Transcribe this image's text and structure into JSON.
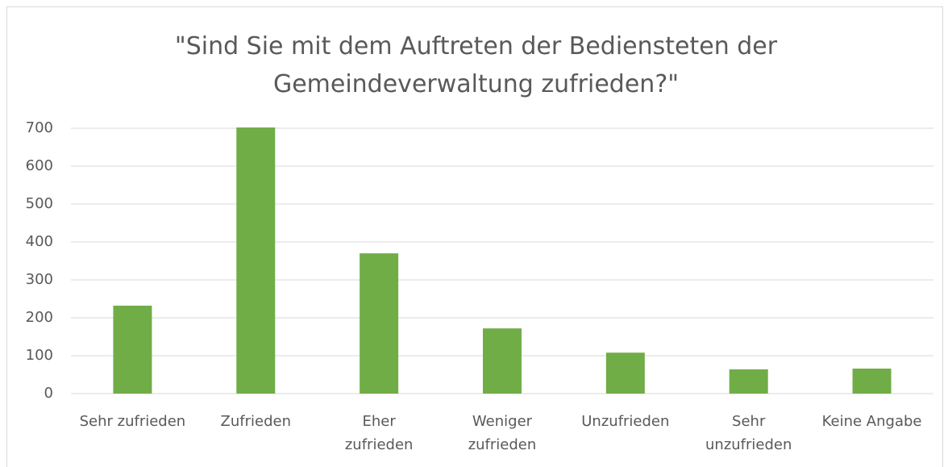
{
  "chart_data": {
    "type": "bar",
    "title": "\"Sind Sie mit dem Auftreten der Bediensteten der\nGemeindeverwaltung zufrieden?\"",
    "categories": [
      "Sehr zufrieden",
      "Zufrieden",
      "Eher\nzufrieden",
      "Weniger\nzufrieden",
      "Unzufrieden",
      "Sehr\nunzufrieden",
      "Keine Angabe"
    ],
    "values": [
      232,
      702,
      370,
      172,
      108,
      64,
      66
    ],
    "color": "#70ad47",
    "ylim": [
      0,
      700
    ],
    "yticks": [
      0,
      100,
      200,
      300,
      400,
      500,
      600,
      700
    ],
    "grid": true
  }
}
